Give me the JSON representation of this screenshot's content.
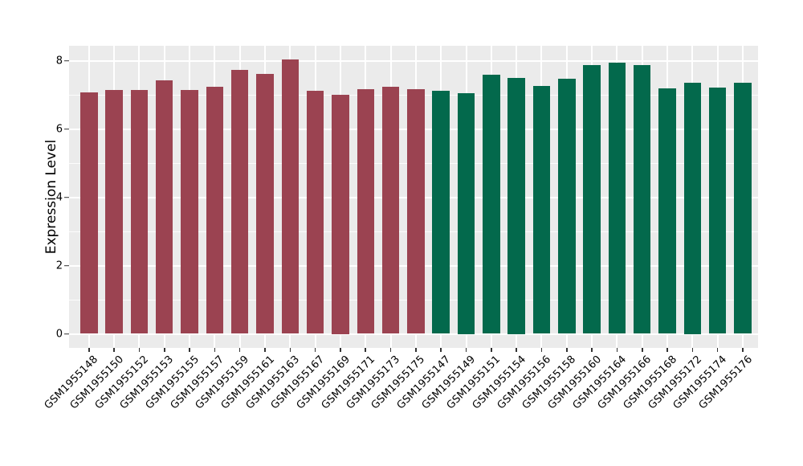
{
  "figure": {
    "y_axis_title": "Expression Level"
  },
  "chart_data": {
    "type": "bar",
    "title": "",
    "xlabel": "",
    "ylabel": "Expression Level",
    "ylim": [
      0,
      8.5
    ],
    "yticks": [
      0,
      2,
      4,
      6,
      8
    ],
    "grid": {
      "panel_background": "#EBEBEB",
      "gridline_color": "#FFFFFF",
      "horizontal_major_at": [
        0,
        2,
        4,
        6,
        8
      ],
      "horizontal_minor_at": [
        1,
        3,
        5,
        7
      ],
      "vertical": "one white gridline per category center"
    },
    "legend": "none",
    "groups": [
      {
        "name": "maroon-group",
        "color": "#9B4351"
      },
      {
        "name": "green-group",
        "color": "#03694C"
      }
    ],
    "bars": [
      {
        "label": "GSM1955148",
        "value": 7.08,
        "group": 0
      },
      {
        "label": "GSM1955150",
        "value": 7.14,
        "group": 0
      },
      {
        "label": "GSM1955152",
        "value": 7.14,
        "group": 0
      },
      {
        "label": "GSM1955153",
        "value": 7.43,
        "group": 0
      },
      {
        "label": "GSM1955155",
        "value": 7.14,
        "group": 0
      },
      {
        "label": "GSM1955157",
        "value": 7.24,
        "group": 0
      },
      {
        "label": "GSM1955159",
        "value": 7.74,
        "group": 0
      },
      {
        "label": "GSM1955161",
        "value": 7.62,
        "group": 0
      },
      {
        "label": "GSM1955163",
        "value": 8.04,
        "group": 0
      },
      {
        "label": "GSM1955167",
        "value": 7.12,
        "group": 0
      },
      {
        "label": "GSM1955169",
        "value": 7.0,
        "group": 0
      },
      {
        "label": "GSM1955171",
        "value": 7.17,
        "group": 0
      },
      {
        "label": "GSM1955173",
        "value": 7.24,
        "group": 0
      },
      {
        "label": "GSM1955175",
        "value": 7.17,
        "group": 0
      },
      {
        "label": "GSM1955147",
        "value": 7.12,
        "group": 1
      },
      {
        "label": "GSM1955149",
        "value": 7.05,
        "group": 1
      },
      {
        "label": "GSM1955151",
        "value": 7.59,
        "group": 1
      },
      {
        "label": "GSM1955154",
        "value": 7.5,
        "group": 1
      },
      {
        "label": "GSM1955156",
        "value": 7.26,
        "group": 1
      },
      {
        "label": "GSM1955158",
        "value": 7.47,
        "group": 1
      },
      {
        "label": "GSM1955160",
        "value": 7.86,
        "group": 1
      },
      {
        "label": "GSM1955164",
        "value": 7.93,
        "group": 1
      },
      {
        "label": "GSM1955166",
        "value": 7.86,
        "group": 1
      },
      {
        "label": "GSM1955168",
        "value": 7.19,
        "group": 1
      },
      {
        "label": "GSM1955172",
        "value": 7.35,
        "group": 1
      },
      {
        "label": "GSM1955174",
        "value": 7.21,
        "group": 1
      },
      {
        "label": "GSM1955176",
        "value": 7.36,
        "group": 1
      }
    ]
  }
}
